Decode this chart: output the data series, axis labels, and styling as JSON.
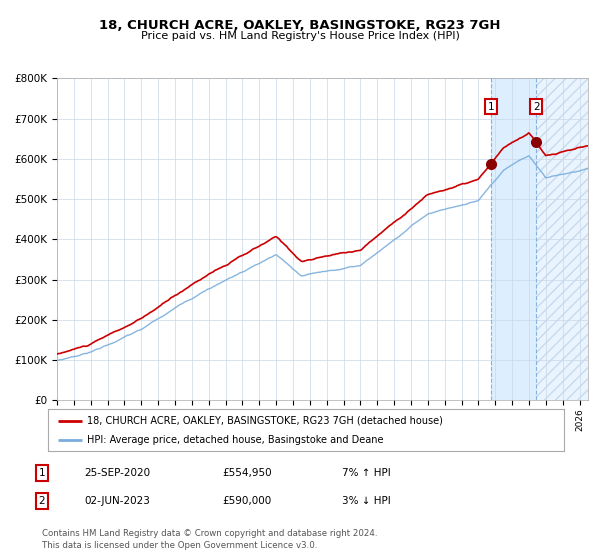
{
  "title": "18, CHURCH ACRE, OAKLEY, BASINGSTOKE, RG23 7GH",
  "subtitle": "Price paid vs. HM Land Registry's House Price Index (HPI)",
  "legend_label_red": "18, CHURCH ACRE, OAKLEY, BASINGSTOKE, RG23 7GH (detached house)",
  "legend_label_blue": "HPI: Average price, detached house, Basingstoke and Deane",
  "footer": "Contains HM Land Registry data © Crown copyright and database right 2024.\nThis data is licensed under the Open Government Licence v3.0.",
  "transactions": [
    {
      "num": 1,
      "date": "25-SEP-2020",
      "price": 554950,
      "pct": "7%",
      "dir": "↑",
      "year": 2020.75
    },
    {
      "num": 2,
      "date": "02-JUN-2023",
      "price": 590000,
      "pct": "3%",
      "dir": "↓",
      "year": 2023.42
    }
  ],
  "highlight_start": 2020.75,
  "highlight_end": 2023.42,
  "hatch_end": 2026.5,
  "ylim": [
    0,
    800000
  ],
  "yticks": [
    0,
    100000,
    200000,
    300000,
    400000,
    500000,
    600000,
    700000,
    800000
  ],
  "xlim_start": 1995.0,
  "xlim_end": 2026.5,
  "red_color": "#cc0000",
  "blue_color": "#7aaddb",
  "highlight_color": "#ddeeff",
  "grid_color": "#c8d8e8",
  "marker_color": "#8b0000",
  "transaction1_y": 554950,
  "transaction2_y": 590000
}
